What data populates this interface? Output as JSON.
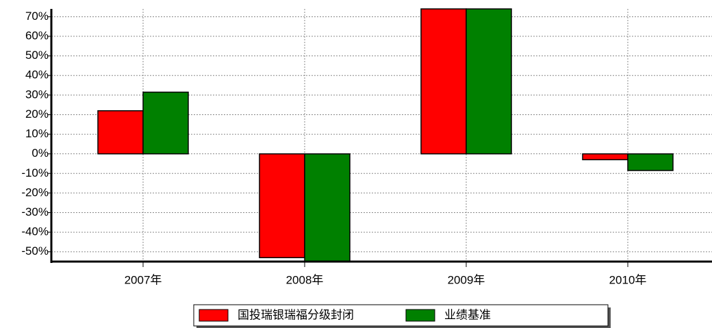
{
  "chart_data": {
    "type": "bar",
    "categories": [
      "2007年",
      "2008年",
      "2009年",
      "2010年"
    ],
    "series": [
      {
        "name": "国投瑞银瑞福分级封闭",
        "color": "#ff0000",
        "values": [
          22,
          -53,
          74,
          -3
        ]
      },
      {
        "name": "业绩基准",
        "color": "#008000",
        "values": [
          31.5,
          -55,
          74,
          -8.5
        ]
      }
    ],
    "ylim": [
      -55,
      74
    ],
    "yticks": [
      {
        "value": -50,
        "label": "-50%"
      },
      {
        "value": -40,
        "label": "-40%"
      },
      {
        "value": -30,
        "label": "-30%"
      },
      {
        "value": -20,
        "label": "-20%"
      },
      {
        "value": -10,
        "label": "-10%"
      },
      {
        "value": 0,
        "label": "0%"
      },
      {
        "value": 10,
        "label": "10%"
      },
      {
        "value": 20,
        "label": "20%"
      },
      {
        "value": 30,
        "label": "30%"
      },
      {
        "value": 40,
        "label": "40%"
      },
      {
        "value": 50,
        "label": "50%"
      },
      {
        "value": 60,
        "label": "60%"
      },
      {
        "value": 70,
        "label": "70%"
      }
    ],
    "grid": true,
    "legend": "bottom"
  }
}
